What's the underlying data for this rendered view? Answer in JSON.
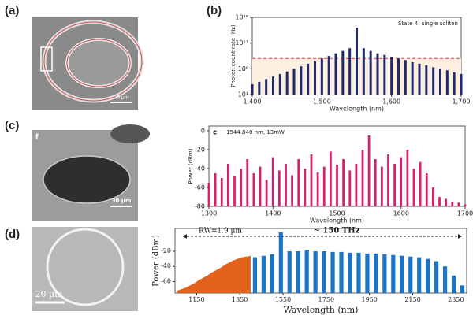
{
  "panel_labels": [
    "(a)",
    "(b)",
    "(c)",
    "(d)"
  ],
  "images": [
    {
      "scale_bar": "20 µm"
    },
    {
      "corner_label": "f",
      "scale_bar": "30 µm"
    },
    {
      "scale_bar": "20 µm"
    }
  ],
  "chart_data": [
    {
      "type": "stem",
      "log_y": true,
      "annotation": "State 4: single soliton",
      "x_label": "Wavelength (nm)",
      "y_label": "Photon count rate (Hz)",
      "xlim": [
        1400,
        1700
      ],
      "xticks": [
        {
          "value": 1400,
          "label": "1,400"
        },
        {
          "value": 1500,
          "label": "1,500"
        },
        {
          "value": 1600,
          "label": "1,600"
        },
        {
          "value": 1700,
          "label": "1,700"
        }
      ],
      "ylim": [
        10,
        10000000000000000
      ],
      "yticks": [
        {
          "value": 10,
          "label": "10¹"
        },
        {
          "value": 1000000,
          "label": "10⁶"
        },
        {
          "value": 100000000000,
          "label": "10¹¹"
        },
        {
          "value": 10000000000000000,
          "label": "10¹⁶"
        }
      ],
      "threshold": 100000000,
      "threshold_color": "#e04040",
      "series": [
        {
          "color": "#1f2a6b",
          "x": [
            1400,
            1410,
            1420,
            1430,
            1440,
            1450,
            1460,
            1470,
            1480,
            1490,
            1500,
            1510,
            1520,
            1530,
            1540,
            1550,
            1560,
            1570,
            1580,
            1590,
            1600,
            1610,
            1620,
            1630,
            1640,
            1650,
            1660,
            1670,
            1680,
            1690,
            1700
          ],
          "values": [
            1000,
            3000,
            10000,
            30000,
            100000,
            300000,
            1000000,
            3000000,
            10000000,
            30000000,
            100000000,
            300000000,
            1000000000,
            3000000000,
            10000000000,
            100000000000000,
            10000000000,
            3000000000,
            1000000000,
            500000000,
            200000000,
            100000000,
            50000000,
            20000000,
            10000000,
            5000000,
            2000000,
            1000000,
            500000,
            200000,
            100000
          ]
        }
      ]
    },
    {
      "type": "stem",
      "corner_label": "c",
      "annotation": "1544.848 nm, 13mW",
      "x_label": "Wavelength (nm)",
      "y_label": "Power (dBm)",
      "xlim": [
        1300,
        1700
      ],
      "xticks": [
        1300,
        1400,
        1500,
        1600,
        1700
      ],
      "ylim": [
        -80,
        5
      ],
      "yticks": [
        0,
        -20,
        -40,
        -60,
        -80
      ],
      "series": [
        {
          "color": "#d6216e",
          "x": [
            1300,
            1310,
            1320,
            1330,
            1340,
            1350,
            1360,
            1370,
            1380,
            1390,
            1400,
            1410,
            1420,
            1430,
            1440,
            1450,
            1460,
            1470,
            1480,
            1490,
            1500,
            1510,
            1520,
            1530,
            1540,
            1550,
            1560,
            1570,
            1580,
            1590,
            1600,
            1610,
            1620,
            1630,
            1640,
            1650,
            1660,
            1670,
            1680,
            1690,
            1700
          ],
          "values": [
            -55,
            -45,
            -50,
            -35,
            -48,
            -40,
            -30,
            -45,
            -38,
            -52,
            -28,
            -42,
            -35,
            -47,
            -30,
            -40,
            -25,
            -44,
            -38,
            -22,
            -36,
            -30,
            -42,
            -35,
            -20,
            -5,
            -30,
            -38,
            -25,
            -35,
            -28,
            -20,
            -40,
            -33,
            -45,
            -60,
            -70,
            -72,
            -75,
            -76,
            -78
          ]
        }
      ]
    },
    {
      "type": "stem",
      "serif": true,
      "annotations": [
        "RW=1.9 µm",
        "~ 150 THz"
      ],
      "x_label": "Wavelength (nm)",
      "y_label": "Power (dBm)",
      "xlim": [
        1050,
        2400
      ],
      "xticks": [
        1150,
        1350,
        1550,
        1750,
        1950,
        2150,
        2350
      ],
      "ylim": [
        -75,
        10
      ],
      "yticks": [
        -20,
        -40,
        -60
      ],
      "series": [
        {
          "color": "#e2621c",
          "style": "area",
          "x": [
            1060,
            1080,
            1100,
            1120,
            1140,
            1160,
            1180,
            1200,
            1220,
            1240,
            1260,
            1280,
            1300,
            1320,
            1340,
            1360,
            1380,
            1400
          ],
          "values": [
            -72,
            -70,
            -68,
            -65,
            -62,
            -58,
            -55,
            -52,
            -48,
            -45,
            -42,
            -38,
            -35,
            -32,
            -30,
            -28,
            -27,
            -26
          ]
        },
        {
          "color": "#1a73c4",
          "x": [
            1420,
            1460,
            1500,
            1540,
            1580,
            1620,
            1660,
            1700,
            1740,
            1780,
            1820,
            1860,
            1900,
            1940,
            1980,
            2020,
            2060,
            2100,
            2140,
            2180,
            2220,
            2260,
            2300,
            2340,
            2380
          ],
          "values": [
            -28,
            -26,
            -24,
            5,
            -20,
            -20,
            -19,
            -20,
            -20,
            -21,
            -21,
            -22,
            -22,
            -23,
            -23,
            -24,
            -25,
            -26,
            -27,
            -28,
            -30,
            -33,
            -40,
            -52,
            -65
          ]
        }
      ]
    }
  ]
}
